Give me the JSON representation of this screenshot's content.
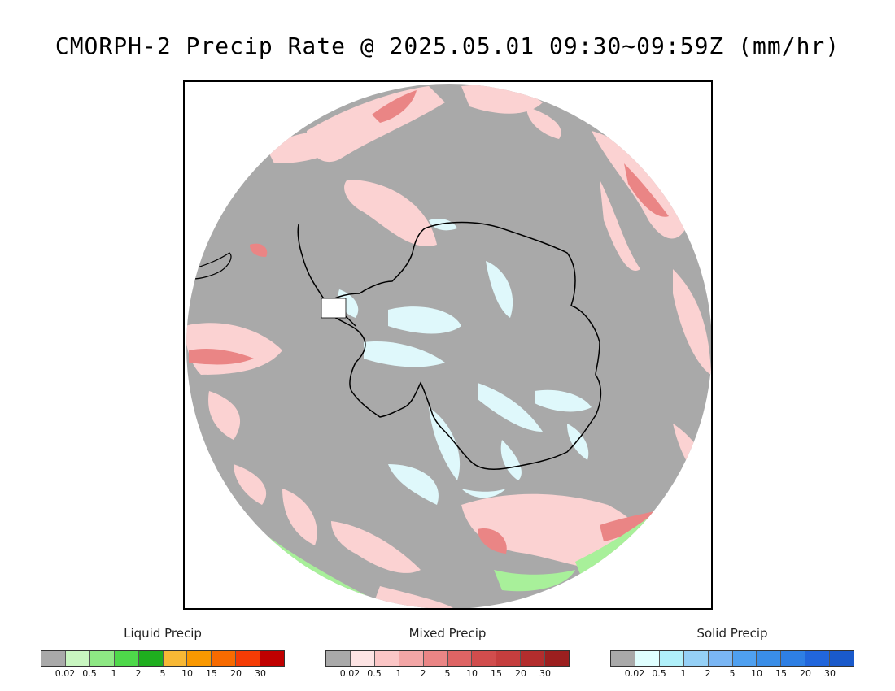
{
  "title": "CMORPH-2 Precip Rate @ 2025.05.01 09:30~09:59Z (mm/hr)",
  "map": {
    "projection": "south-polar-stereographic",
    "no_data_color": "#ffffff",
    "background_precip_color": "#a9a9a9"
  },
  "legends": [
    {
      "id": "liquid",
      "title": "Liquid Precip",
      "colors": [
        "#a9a9a9",
        "#c8f5c0",
        "#8ee884",
        "#4ed84a",
        "#1fae1f",
        "#f7b835",
        "#f99800",
        "#f86b00",
        "#f53c05",
        "#c00000"
      ],
      "ticks": [
        "0.02",
        "0.5",
        "1",
        "2",
        "5",
        "10",
        "15",
        "20",
        "30"
      ]
    },
    {
      "id": "mixed",
      "title": "Mixed Precip",
      "colors": [
        "#a9a9a9",
        "#fde4e4",
        "#fbc6c6",
        "#f3a6a6",
        "#ea8585",
        "#de6464",
        "#d14d4d",
        "#c53e3e",
        "#b32d2d",
        "#9c1f1f"
      ],
      "ticks": [
        "0.02",
        "0.5",
        "1",
        "2",
        "5",
        "10",
        "15",
        "20",
        "30"
      ]
    },
    {
      "id": "solid",
      "title": "Solid Precip",
      "colors": [
        "#a9a9a9",
        "#e0ffff",
        "#b0f0fa",
        "#95d0f6",
        "#7ab6f4",
        "#4fa0f0",
        "#3a8ee8",
        "#2e7fe4",
        "#2166dc",
        "#1a5acb"
      ],
      "ticks": [
        "0.02",
        "0.5",
        "1",
        "2",
        "5",
        "10",
        "15",
        "20",
        "30"
      ]
    }
  ]
}
